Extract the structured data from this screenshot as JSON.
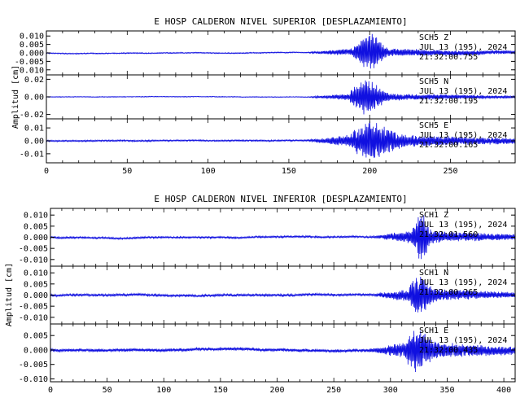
{
  "chart_data": [
    {
      "type": "line",
      "title": "E HOSP CALDERON NIVEL SUPERIOR [DESPLAZAMIENTO]",
      "ylabel": "Amplitud [cm]",
      "xlim": [
        0,
        290
      ],
      "xticks": [
        "0",
        "50",
        "100",
        "150",
        "200",
        "250"
      ],
      "xtick_values": [
        0,
        50,
        100,
        150,
        200,
        250
      ],
      "line_color": "#1010e0",
      "channels": [
        {
          "yticks": [
            "0.010",
            "0.005",
            "0.000",
            "-0.005",
            "-0.010"
          ],
          "ytick_values": [
            0.01,
            0.005,
            0.0,
            -0.005,
            -0.01
          ],
          "ylim": [
            -0.013,
            0.013
          ],
          "annotation": [
            "SCH5 Z",
            "JUL 13 (195), 2024",
            "21:32:00.755"
          ],
          "quiet_amp": 0.0003,
          "onset": 162,
          "burst_start": 190,
          "burst_center": 200,
          "burst_end": 212,
          "peak_amp": 0.012,
          "coda_amp": 0.0025,
          "seed": 11
        },
        {
          "yticks": [
            "0.02",
            "0.00",
            "-0.02"
          ],
          "ytick_values": [
            0.02,
            0.0,
            -0.02
          ],
          "ylim": [
            -0.025,
            0.025
          ],
          "annotation": [
            "SCH5 N",
            "JUL 13 (195), 2024",
            "21:32:00.195"
          ],
          "quiet_amp": 0.0004,
          "onset": 162,
          "burst_start": 188,
          "burst_center": 198,
          "burst_end": 214,
          "peak_amp": 0.021,
          "coda_amp": 0.004,
          "seed": 23
        },
        {
          "yticks": [
            "0.01",
            "0.00",
            "-0.01"
          ],
          "ytick_values": [
            0.01,
            0.0,
            -0.01
          ],
          "ylim": [
            -0.017,
            0.017
          ],
          "annotation": [
            "SCH5 E",
            "JUL 13 (195), 2024",
            "21:32:00.165"
          ],
          "quiet_amp": 0.0006,
          "onset": 162,
          "burst_start": 188,
          "burst_center": 202,
          "burst_end": 222,
          "peak_amp": 0.016,
          "coda_amp": 0.005,
          "seed": 37
        }
      ]
    },
    {
      "type": "line",
      "title": "E HOSP CALDERON NIVEL INFERIOR [DESPLAZAMIENTO]",
      "ylabel": "Amplitud [cm]",
      "xlim": [
        0,
        410
      ],
      "xticks": [
        "0",
        "50",
        "100",
        "150",
        "200",
        "250",
        "300",
        "350",
        "400"
      ],
      "xtick_values": [
        0,
        50,
        100,
        150,
        200,
        250,
        300,
        350,
        400
      ],
      "line_color": "#1010e0",
      "channels": [
        {
          "yticks": [
            "0.010",
            "0.005",
            "0.000",
            "-0.005",
            "-0.010"
          ],
          "ytick_values": [
            0.01,
            0.005,
            0.0,
            -0.005,
            -0.01
          ],
          "ylim": [
            -0.013,
            0.013
          ],
          "annotation": [
            "SCH1 Z",
            "JUL 13 (195), 2024",
            "21:32:01.560"
          ],
          "quiet_amp": 0.0004,
          "onset": 285,
          "burst_start": 318,
          "burst_center": 327,
          "burst_end": 336,
          "peak_amp": 0.012,
          "coda_amp": 0.003,
          "seed": 51
        },
        {
          "yticks": [
            "0.010",
            "0.005",
            "0.000",
            "-0.005",
            "-0.010"
          ],
          "ytick_values": [
            0.01,
            0.005,
            0.0,
            -0.005,
            -0.01
          ],
          "ylim": [
            -0.013,
            0.013
          ],
          "annotation": [
            "SCH1 N",
            "JUL 13 (195), 2024",
            "21:32:00.265"
          ],
          "quiet_amp": 0.0005,
          "onset": 285,
          "burst_start": 316,
          "burst_center": 326,
          "burst_end": 340,
          "peak_amp": 0.01,
          "coda_amp": 0.003,
          "seed": 67
        },
        {
          "yticks": [
            "0.005",
            "0.000",
            "-0.005",
            "-0.010"
          ],
          "ytick_values": [
            0.005,
            0.0,
            -0.005,
            -0.01
          ],
          "ylim": [
            -0.011,
            0.009
          ],
          "annotation": [
            "SCH1 E",
            "JUL 13 (195), 2024",
            "21:32:00.435"
          ],
          "quiet_amp": 0.0005,
          "onset": 280,
          "burst_start": 314,
          "burst_center": 324,
          "burst_end": 345,
          "peak_amp": 0.008,
          "coda_amp": 0.003,
          "seed": 79
        }
      ]
    }
  ]
}
